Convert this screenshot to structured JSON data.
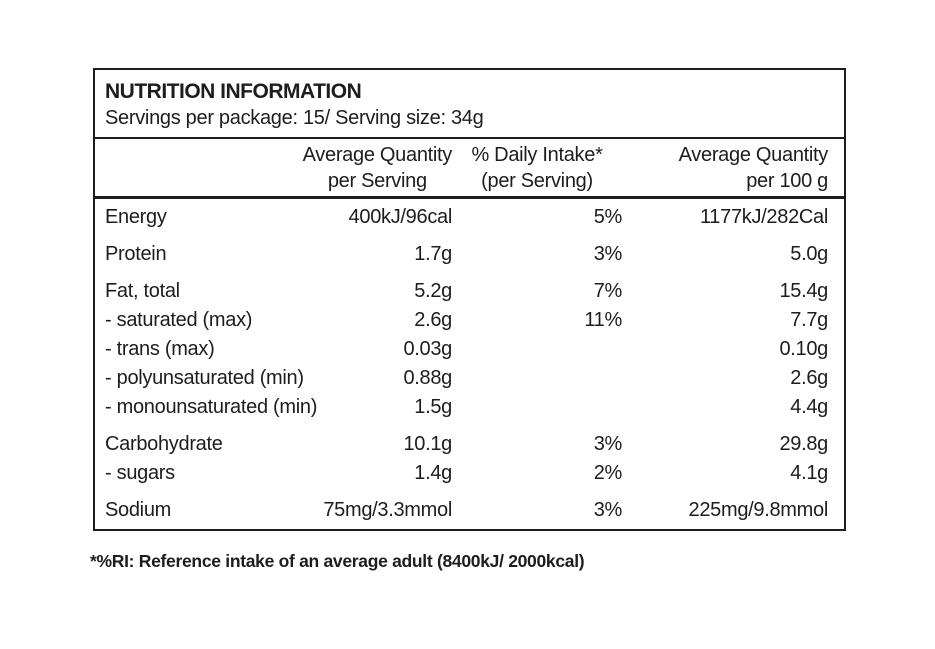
{
  "label": {
    "title": "NUTRITION INFORMATION",
    "servings_line": "Servings per package: 15/ Serving size: 34g",
    "columns": {
      "per_serving": {
        "line1": "Average Quantity",
        "line2": "per Serving"
      },
      "daily_intake": {
        "line1": "% Daily Intake*",
        "line2": "(per Serving)"
      },
      "per_100g": {
        "line1": "Average Quantity",
        "line2": "per 100 g"
      }
    },
    "rows": [
      {
        "name": "Energy",
        "per_serving": "400kJ/96cal",
        "daily_intake": "5%",
        "per_100g": "1177kJ/282Cal"
      },
      {
        "name": "Protein",
        "per_serving": "1.7g",
        "daily_intake": "3%",
        "per_100g": "5.0g"
      },
      {
        "name": "Fat, total",
        "per_serving": "5.2g",
        "daily_intake": "7%",
        "per_100g": "15.4g"
      },
      {
        "name": "- saturated (max)",
        "per_serving": "2.6g",
        "daily_intake": "11%",
        "per_100g": "7.7g"
      },
      {
        "name": "- trans (max)",
        "per_serving": "0.03g",
        "daily_intake": "",
        "per_100g": "0.10g"
      },
      {
        "name": "- polyunsaturated (min)",
        "per_serving": "0.88g",
        "daily_intake": "",
        "per_100g": "2.6g"
      },
      {
        "name": "- monounsaturated (min)",
        "per_serving": "1.5g",
        "daily_intake": "",
        "per_100g": "4.4g"
      },
      {
        "name": "Carbohydrate",
        "per_serving": "10.1g",
        "daily_intake": "3%",
        "per_100g": "29.8g"
      },
      {
        "name": "- sugars",
        "per_serving": "1.4g",
        "daily_intake": "2%",
        "per_100g": "4.1g"
      },
      {
        "name": "Sodium",
        "per_serving": "75mg/3.3mmol",
        "daily_intake": "3%",
        "per_100g": "225mg/9.8mmol"
      }
    ],
    "footnote": "*%RI: Reference intake of an average adult (8400kJ/ 2000kcal)",
    "colors": {
      "text": "#1d1d1b",
      "border": "#1d1d1b",
      "background": "#ffffff"
    }
  }
}
